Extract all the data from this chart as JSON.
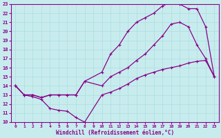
{
  "xlabel": "Windchill (Refroidissement éolien,°C)",
  "xlim": [
    -0.5,
    23.5
  ],
  "ylim": [
    10,
    23
  ],
  "xticks": [
    0,
    1,
    2,
    3,
    4,
    5,
    6,
    7,
    8,
    9,
    10,
    11,
    12,
    13,
    14,
    15,
    16,
    17,
    18,
    19,
    20,
    21,
    22,
    23
  ],
  "yticks": [
    10,
    11,
    12,
    13,
    14,
    15,
    16,
    17,
    18,
    19,
    20,
    21,
    22,
    23
  ],
  "bg_color": "#c8ecee",
  "line_color": "#880088",
  "grid_color": "#aadddd",
  "line1_x": [
    0,
    1,
    2,
    3,
    4,
    5,
    6,
    7,
    8,
    10,
    11,
    12,
    13,
    14,
    15,
    16,
    17,
    18,
    19,
    20,
    21,
    22,
    23
  ],
  "line1_y": [
    14,
    13,
    12.8,
    12.5,
    11.5,
    11.3,
    11.2,
    10.5,
    10,
    13,
    13.3,
    13.7,
    14.2,
    14.8,
    15.2,
    15.5,
    15.8,
    16,
    16.2,
    16.5,
    16.7,
    16.8,
    15
  ],
  "line2_x": [
    0,
    1,
    2,
    3,
    4,
    5,
    6,
    7,
    8,
    10,
    11,
    12,
    13,
    14,
    15,
    16,
    17,
    18,
    19,
    20,
    21,
    22,
    23
  ],
  "line2_y": [
    14,
    13,
    13,
    12.7,
    13,
    13,
    13,
    13,
    14.5,
    14,
    15,
    15.5,
    16,
    16.8,
    17.5,
    18.5,
    19.5,
    20.8,
    21,
    20.5,
    18.5,
    17,
    15
  ],
  "line3_x": [
    0,
    1,
    2,
    3,
    4,
    5,
    6,
    7,
    8,
    10,
    11,
    12,
    13,
    14,
    15,
    16,
    17,
    18,
    19,
    20,
    21,
    22,
    23
  ],
  "line3_y": [
    14,
    13,
    13,
    12.7,
    13,
    13,
    13,
    13,
    14.5,
    15.5,
    17.5,
    18.5,
    20,
    21,
    21.5,
    22,
    22.8,
    23.2,
    23,
    22.5,
    22.5,
    20.5,
    15
  ]
}
